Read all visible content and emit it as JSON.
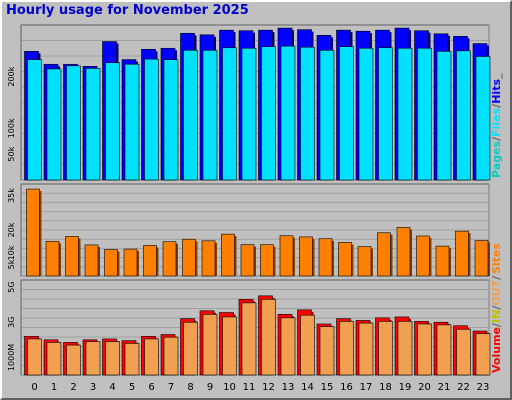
{
  "chart_data": [
    {
      "type": "bar",
      "title": "Hourly usage for November 2025",
      "categories": [
        "0",
        "1",
        "2",
        "3",
        "4",
        "5",
        "6",
        "7",
        "8",
        "9",
        "10",
        "11",
        "12",
        "13",
        "14",
        "15",
        "16",
        "17",
        "18",
        "19",
        "20",
        "21",
        "22",
        "23"
      ],
      "series": [
        {
          "name": "Hits",
          "values": [
            249000,
            224000,
            224000,
            220000,
            268000,
            233000,
            253000,
            255000,
            284000,
            281000,
            290000,
            289000,
            290000,
            294000,
            291000,
            280000,
            290000,
            288000,
            290000,
            294000,
            289000,
            283000,
            278000,
            264000
          ]
        },
        {
          "name": "Files",
          "values": [
            233000,
            215000,
            221000,
            216000,
            227000,
            224000,
            234000,
            233000,
            251000,
            251000,
            256000,
            255000,
            258000,
            259000,
            257000,
            251000,
            258000,
            255000,
            256000,
            255000,
            255000,
            249000,
            250000,
            239000
          ]
        },
        {
          "name": "Pages",
          "values": [
            0,
            0,
            0,
            0,
            0,
            0,
            0,
            0,
            0,
            0,
            0,
            0,
            0,
            0,
            0,
            0,
            0,
            0,
            0,
            0,
            0,
            0,
            0,
            0
          ]
        }
      ],
      "y_ticks": [
        "50k",
        "100k",
        "200k"
      ],
      "ylim": [
        0,
        300000
      ],
      "legend": [
        "Pages",
        "/",
        "Files",
        "/",
        "Hits",
        "_"
      ],
      "colors": {
        "Hits": "#0000ff",
        "Files": "#00e0ff",
        "Pages": "#00d0c0"
      }
    },
    {
      "type": "bar",
      "categories": [
        "0",
        "1",
        "2",
        "3",
        "4",
        "5",
        "6",
        "7",
        "8",
        "9",
        "10",
        "11",
        "12",
        "13",
        "14",
        "15",
        "16",
        "17",
        "18",
        "19",
        "20",
        "21",
        "22",
        "23"
      ],
      "series": [
        {
          "name": "Sites",
          "values": [
            37800,
            15100,
            17200,
            13500,
            11500,
            11700,
            13300,
            14900,
            16000,
            15300,
            18200,
            13600,
            13600,
            17500,
            17000,
            16200,
            14600,
            12800,
            18800,
            21100,
            17400,
            13000,
            19500,
            15400
          ]
        }
      ],
      "y_ticks": [
        "5k",
        "10k",
        "20k",
        "35k"
      ],
      "ylim": [
        0,
        40000
      ],
      "legend": [
        "Sites"
      ],
      "colors": {
        "Sites": "#ff8000"
      }
    },
    {
      "type": "bar",
      "categories": [
        "0",
        "1",
        "2",
        "3",
        "4",
        "5",
        "6",
        "7",
        "8",
        "9",
        "10",
        "11",
        "12",
        "13",
        "14",
        "15",
        "16",
        "17",
        "18",
        "19",
        "20",
        "21",
        "22",
        "23"
      ],
      "series": [
        {
          "name": "Volume",
          "values": [
            2.2,
            2.0,
            1.85,
            2.0,
            2.05,
            1.95,
            2.2,
            2.3,
            3.2,
            3.65,
            3.55,
            4.3,
            4.5,
            3.45,
            3.7,
            2.9,
            3.2,
            3.1,
            3.25,
            3.3,
            3.05,
            3.0,
            2.8,
            2.5
          ]
        },
        {
          "name": "OUT",
          "values": [
            2.05,
            1.85,
            1.7,
            1.9,
            1.9,
            1.8,
            2.05,
            2.15,
            3.0,
            3.45,
            3.3,
            4.1,
            4.3,
            3.25,
            3.4,
            2.75,
            3.05,
            2.95,
            3.05,
            3.05,
            2.9,
            2.85,
            2.6,
            2.35
          ]
        }
      ],
      "y_ticks": [
        "1000M",
        "3G",
        "5G"
      ],
      "ylim": [
        0,
        5.4
      ],
      "legend": [
        "Volume",
        "/",
        "IN",
        "/",
        "OUT",
        "/"
      ],
      "colors": {
        "Volume": "#ff0000",
        "OUT": "#f0a050",
        "IN": "#c0c000"
      }
    }
  ]
}
